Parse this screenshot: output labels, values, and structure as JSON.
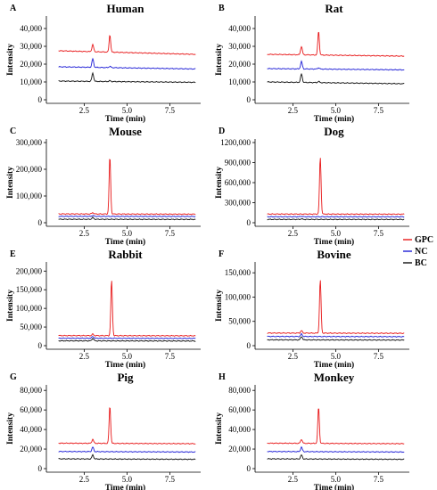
{
  "chart_data": [
    {
      "type": "line",
      "panel_label": "A",
      "title": "Human",
      "xlabel": "Time (min)",
      "ylabel": "Intensity",
      "xlim": [
        0.5,
        9.3
      ],
      "ylim": [
        0,
        45000
      ],
      "x_ticks": [
        {
          "value": 2.5,
          "label": "2.5"
        },
        {
          "value": 5,
          "label": "5.0"
        },
        {
          "value": 7.5,
          "label": "7.5"
        }
      ],
      "y_ticks": [
        {
          "value": 0,
          "label": "0"
        },
        {
          "value": 10000,
          "label": "10,000"
        },
        {
          "value": 20000,
          "label": "20,000"
        },
        {
          "value": 30000,
          "label": "30,000"
        },
        {
          "value": 40000,
          "label": "40,000"
        }
      ],
      "series": [
        {
          "name": "GPC",
          "color": "#e8191a",
          "baseline": 27500,
          "end": 25500,
          "peaks": [
            [
              3.0,
              31000
            ],
            [
              4.0,
              36500
            ]
          ]
        },
        {
          "name": "NC",
          "color": "#1f1fd6",
          "baseline": 18500,
          "end": 17300,
          "peaks": [
            [
              3.0,
              23000
            ],
            [
              4.0,
              18800
            ]
          ]
        },
        {
          "name": "BC",
          "color": "#111111",
          "baseline": 10500,
          "end": 9800,
          "peaks": [
            [
              3.0,
              15000
            ],
            [
              4.0,
              10700
            ]
          ]
        }
      ]
    },
    {
      "type": "line",
      "panel_label": "B",
      "title": "Rat",
      "xlabel": "Time (min)",
      "ylabel": "Intensity",
      "xlim": [
        0.5,
        9.3
      ],
      "ylim": [
        0,
        45000
      ],
      "x_ticks": [
        {
          "value": 2.5,
          "label": "2.5"
        },
        {
          "value": 5,
          "label": "5.0"
        },
        {
          "value": 7.5,
          "label": "7.5"
        }
      ],
      "y_ticks": [
        {
          "value": 0,
          "label": "0"
        },
        {
          "value": 10000,
          "label": "10,000"
        },
        {
          "value": 20000,
          "label": "20,000"
        },
        {
          "value": 30000,
          "label": "30,000"
        },
        {
          "value": 40000,
          "label": "40,000"
        }
      ],
      "series": [
        {
          "name": "GPC",
          "color": "#e8191a",
          "baseline": 25500,
          "end": 24500,
          "peaks": [
            [
              3.0,
              30000
            ],
            [
              4.0,
              38500
            ]
          ]
        },
        {
          "name": "NC",
          "color": "#1f1fd6",
          "baseline": 17500,
          "end": 16800,
          "peaks": [
            [
              3.0,
              21500
            ],
            [
              4.0,
              18000
            ]
          ]
        },
        {
          "name": "BC",
          "color": "#111111",
          "baseline": 10000,
          "end": 9000,
          "peaks": [
            [
              3.0,
              14500
            ],
            [
              4.0,
              10300
            ]
          ]
        }
      ]
    },
    {
      "type": "line",
      "panel_label": "C",
      "title": "Mouse",
      "xlabel": "Time (min)",
      "ylabel": "Intensity",
      "xlim": [
        0.5,
        9.3
      ],
      "ylim": [
        0,
        300000
      ],
      "x_ticks": [
        {
          "value": 2.5,
          "label": "2.5"
        },
        {
          "value": 5,
          "label": "5.0"
        },
        {
          "value": 7.5,
          "label": "7.5"
        }
      ],
      "y_ticks": [
        {
          "value": 0,
          "label": "0"
        },
        {
          "value": 100000,
          "label": "100,000"
        },
        {
          "value": 200000,
          "label": "200,000"
        },
        {
          "value": 300000,
          "label": "300,000"
        }
      ],
      "series": [
        {
          "name": "GPC",
          "color": "#e8191a",
          "baseline": 33000,
          "end": 32000,
          "peaks": [
            [
              3.0,
              38000
            ],
            [
              4.0,
              247000
            ]
          ]
        },
        {
          "name": "NC",
          "color": "#1f1fd6",
          "baseline": 24000,
          "end": 23500,
          "peaks": [
            [
              3.0,
              28000
            ]
          ]
        },
        {
          "name": "BC",
          "color": "#111111",
          "baseline": 13000,
          "end": 12500,
          "peaks": [
            [
              3.0,
              20000
            ]
          ]
        }
      ]
    },
    {
      "type": "line",
      "panel_label": "D",
      "title": "Dog",
      "xlabel": "Time (min)",
      "ylabel": "Intensity",
      "xlim": [
        0.5,
        9.3
      ],
      "ylim": [
        0,
        1200000
      ],
      "x_ticks": [
        {
          "value": 2.5,
          "label": "2.5"
        },
        {
          "value": 5,
          "label": "5.0"
        },
        {
          "value": 7.5,
          "label": "7.5"
        }
      ],
      "y_ticks": [
        {
          "value": 0,
          "label": "0"
        },
        {
          "value": 300000,
          "label": "300,000"
        },
        {
          "value": 600000,
          "label": "600,000"
        },
        {
          "value": 900000,
          "label": "900,000"
        },
        {
          "value": 1200000,
          "label": "1200,000"
        }
      ],
      "series": [
        {
          "name": "GPC",
          "color": "#e8191a",
          "baseline": 130000,
          "end": 128000,
          "peaks": [
            [
              4.1,
              985000
            ]
          ]
        },
        {
          "name": "NC",
          "color": "#1f1fd6",
          "baseline": 90000,
          "end": 89000,
          "peaks": [
            [
              3.0,
              97000
            ]
          ]
        },
        {
          "name": "BC",
          "color": "#111111",
          "baseline": 50000,
          "end": 49000,
          "peaks": [
            [
              3.0,
              58000
            ]
          ]
        }
      ]
    },
    {
      "type": "line",
      "panel_label": "E",
      "title": "Rabbit",
      "xlabel": "Time (min)",
      "ylabel": "Intensity",
      "xlim": [
        0.5,
        9.3
      ],
      "ylim": [
        0,
        215000
      ],
      "x_ticks": [
        {
          "value": 2.5,
          "label": "2.5"
        },
        {
          "value": 5,
          "label": "5.0"
        },
        {
          "value": 7.5,
          "label": "7.5"
        }
      ],
      "y_ticks": [
        {
          "value": 0,
          "label": "0"
        },
        {
          "value": 50000,
          "label": "50,000"
        },
        {
          "value": 100000,
          "label": "100,000"
        },
        {
          "value": 150000,
          "label": "150,000"
        },
        {
          "value": 200000,
          "label": "200,000"
        }
      ],
      "series": [
        {
          "name": "GPC",
          "color": "#e8191a",
          "baseline": 27000,
          "end": 26500,
          "peaks": [
            [
              3.0,
              31000
            ],
            [
              4.1,
              175000
            ]
          ]
        },
        {
          "name": "NC",
          "color": "#1f1fd6",
          "baseline": 20000,
          "end": 19500,
          "peaks": [
            [
              3.0,
              25000
            ]
          ]
        },
        {
          "name": "BC",
          "color": "#111111",
          "baseline": 13000,
          "end": 12500,
          "peaks": [
            [
              3.0,
              20000
            ]
          ]
        }
      ]
    },
    {
      "type": "line",
      "panel_label": "F",
      "title": "Bovine",
      "xlabel": "Time (min)",
      "ylabel": "Intensity",
      "xlim": [
        0.5,
        9.3
      ],
      "ylim": [
        0,
        165000
      ],
      "x_ticks": [
        {
          "value": 2.5,
          "label": "2.5"
        },
        {
          "value": 5,
          "label": "5.0"
        },
        {
          "value": 7.5,
          "label": "7.5"
        }
      ],
      "y_ticks": [
        {
          "value": 0,
          "label": "0"
        },
        {
          "value": 50000,
          "label": "50,000"
        },
        {
          "value": 100000,
          "label": "100,000"
        },
        {
          "value": 150000,
          "label": "150,000"
        }
      ],
      "series": [
        {
          "name": "GPC",
          "color": "#e8191a",
          "baseline": 26000,
          "end": 25500,
          "peaks": [
            [
              3.0,
              31000
            ],
            [
              4.1,
              136000
            ]
          ]
        },
        {
          "name": "NC",
          "color": "#1f1fd6",
          "baseline": 19000,
          "end": 18500,
          "peaks": [
            [
              3.0,
              24000
            ]
          ]
        },
        {
          "name": "BC",
          "color": "#111111",
          "baseline": 12000,
          "end": 11500,
          "peaks": [
            [
              3.0,
              19000
            ]
          ]
        }
      ]
    },
    {
      "type": "line",
      "panel_label": "G",
      "title": "Pig",
      "xlabel": "Time (min)",
      "ylabel": "Intensity",
      "xlim": [
        0.5,
        9.3
      ],
      "ylim": [
        0,
        82000
      ],
      "x_ticks": [
        {
          "value": 2.5,
          "label": "2.5"
        },
        {
          "value": 5,
          "label": "5.0"
        },
        {
          "value": 7.5,
          "label": "7.5"
        }
      ],
      "y_ticks": [
        {
          "value": 0,
          "label": "0"
        },
        {
          "value": 20000,
          "label": "20,000"
        },
        {
          "value": 40000,
          "label": "40,000"
        },
        {
          "value": 60000,
          "label": "60,000"
        },
        {
          "value": 80000,
          "label": "80,000"
        }
      ],
      "series": [
        {
          "name": "GPC",
          "color": "#e8191a",
          "baseline": 26000,
          "end": 25500,
          "peaks": [
            [
              3.0,
              30000
            ],
            [
              4.0,
              64000
            ]
          ]
        },
        {
          "name": "NC",
          "color": "#1f1fd6",
          "baseline": 17500,
          "end": 17000,
          "peaks": [
            [
              3.0,
              22000
            ]
          ]
        },
        {
          "name": "BC",
          "color": "#111111",
          "baseline": 10000,
          "end": 9500,
          "peaks": [
            [
              3.0,
              14000
            ]
          ]
        }
      ]
    },
    {
      "type": "line",
      "panel_label": "H",
      "title": "Monkey",
      "xlabel": "Time (min)",
      "ylabel": "Intensity",
      "xlim": [
        0.5,
        9.3
      ],
      "ylim": [
        0,
        82000
      ],
      "x_ticks": [
        {
          "value": 2.5,
          "label": "2.5"
        },
        {
          "value": 5,
          "label": "5.0"
        },
        {
          "value": 7.5,
          "label": "7.5"
        }
      ],
      "y_ticks": [
        {
          "value": 0,
          "label": "0"
        },
        {
          "value": 20000,
          "label": "20,000"
        },
        {
          "value": 40000,
          "label": "40,000"
        },
        {
          "value": 60000,
          "label": "60,000"
        },
        {
          "value": 80000,
          "label": "80,000"
        }
      ],
      "series": [
        {
          "name": "GPC",
          "color": "#e8191a",
          "baseline": 26000,
          "end": 25500,
          "peaks": [
            [
              3.0,
              30000
            ],
            [
              4.0,
              63000
            ]
          ]
        },
        {
          "name": "NC",
          "color": "#1f1fd6",
          "baseline": 17500,
          "end": 17000,
          "peaks": [
            [
              3.0,
              22000
            ]
          ]
        },
        {
          "name": "BC",
          "color": "#111111",
          "baseline": 10000,
          "end": 9500,
          "peaks": [
            [
              3.0,
              14000
            ]
          ]
        }
      ]
    }
  ],
  "legend": {
    "position": "right-middle",
    "items": [
      {
        "label": "GPC",
        "color": "#e8191a"
      },
      {
        "label": "NC",
        "color": "#1f1fd6"
      },
      {
        "label": "BC",
        "color": "#111111"
      }
    ]
  }
}
